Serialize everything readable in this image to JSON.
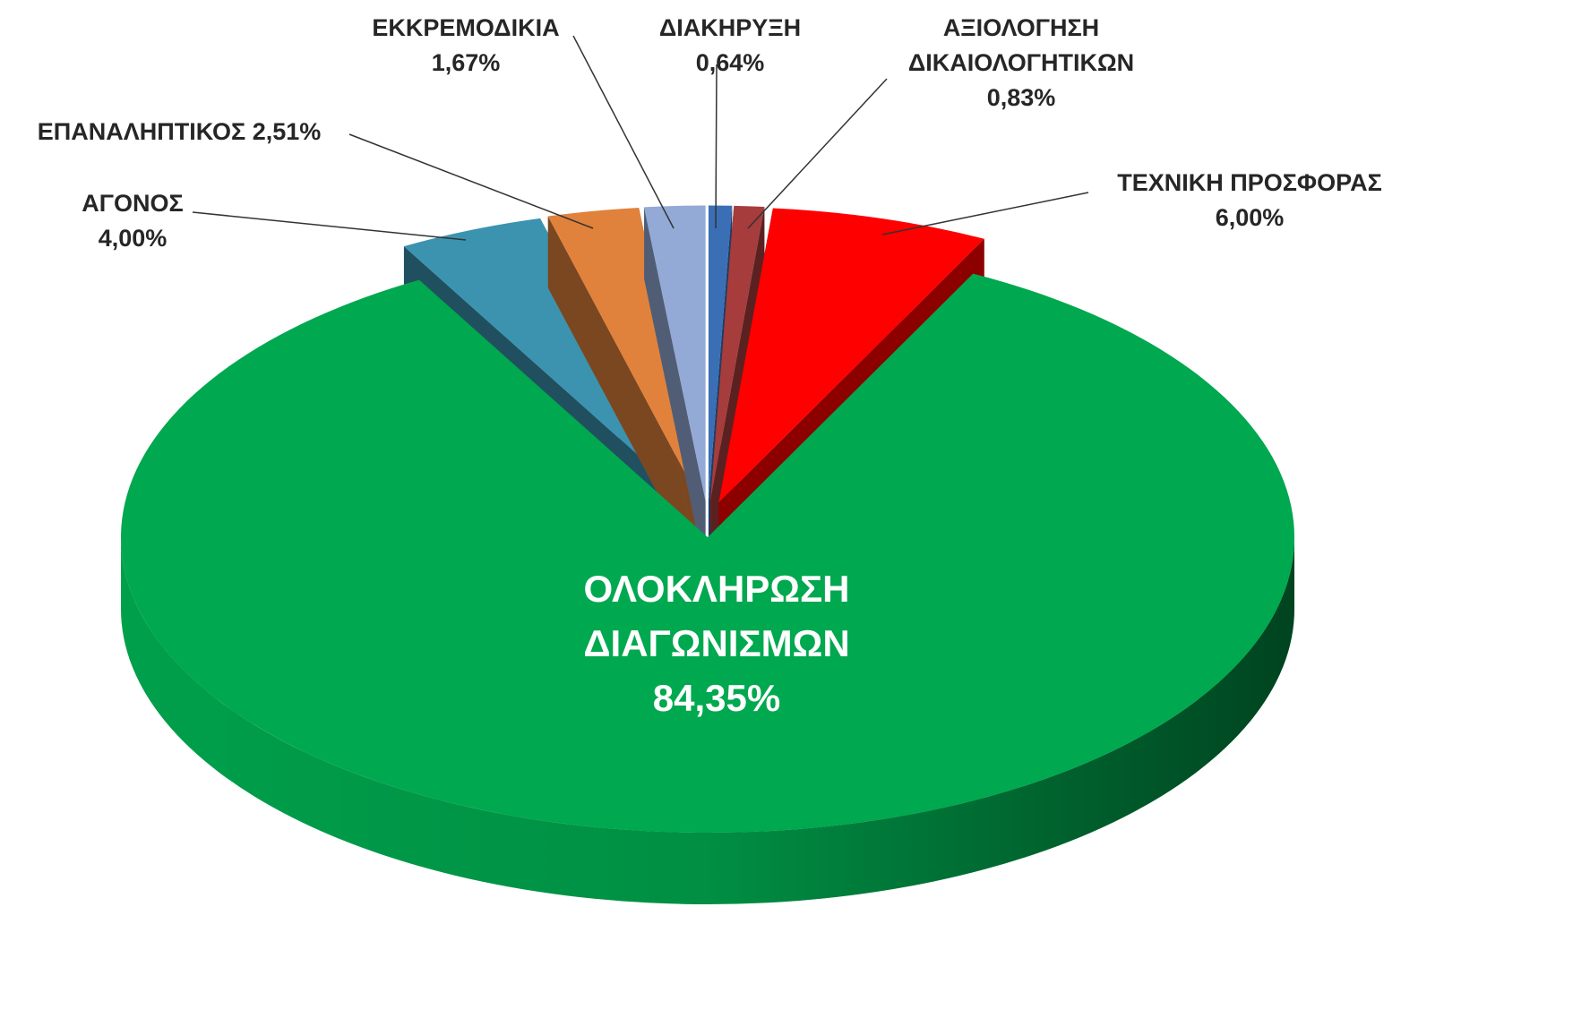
{
  "chart_data": {
    "type": "pie",
    "categories": [
      "ΔΙΑΚΗΡΥΞΗ",
      "ΑΞΙΟΛΟΓΗΣΗ ΔΙΚΑΙΟΛΟΓΗΤΙΚΩΝ",
      "ΤΕΧΝΙΚΗ ΠΡΟΣΦΟΡΑΣ",
      "ΟΛΟΚΛΗΡΩΣΗ ΔΙΑΓΩΝΙΣΜΩΝ",
      "ΑΓΟΝΟΣ",
      "ΕΠΑΝΑΛΗΠΤΙΚΟΣ",
      "ΕΚΚΡΕΜΟΔΙΚΙΑ"
    ],
    "values": [
      0.64,
      0.83,
      6.0,
      84.35,
      4.0,
      2.51,
      1.67
    ],
    "value_labels": [
      "0,64%",
      "0,83%",
      "6,00%",
      "84,35%",
      "4,00%",
      "2,51%",
      "1,67%"
    ],
    "colors": [
      "#3a6fb5",
      "#a63c3c",
      "#ff0000",
      "#00a84f",
      "#3b93b0",
      "#e0823c",
      "#93a9d6"
    ]
  }
}
